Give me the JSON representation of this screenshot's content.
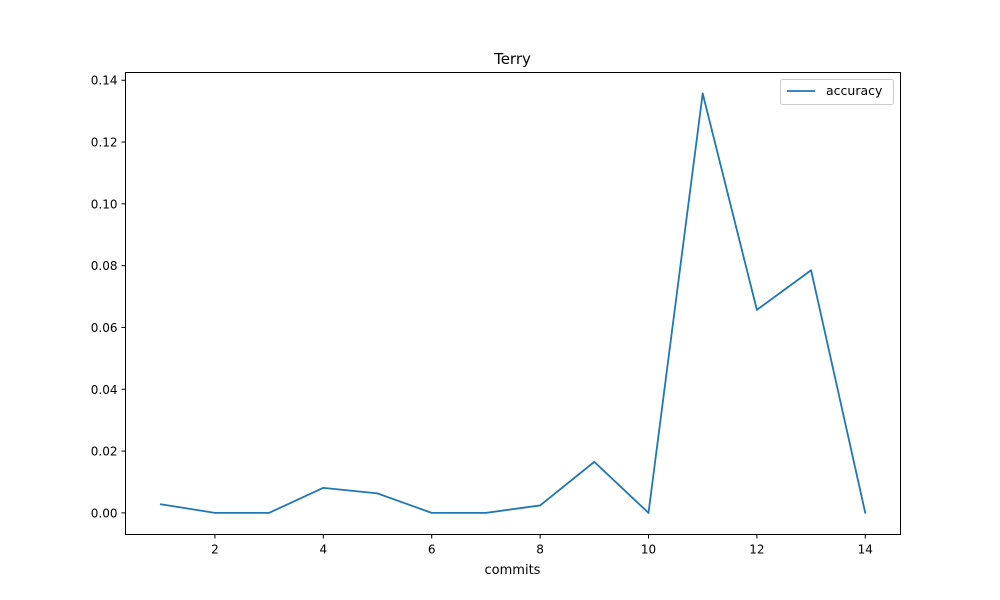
{
  "chart_data": {
    "type": "line",
    "title": "Terry",
    "xlabel": "commits",
    "ylabel": "",
    "xlim": [
      0.35,
      14.65
    ],
    "ylim": [
      -0.007,
      0.1425
    ],
    "xticks": [
      2,
      4,
      6,
      8,
      10,
      12,
      14
    ],
    "yticks": [
      0.0,
      0.02,
      0.04,
      0.06,
      0.08,
      0.1,
      0.12,
      0.14
    ],
    "ytick_labels": [
      "0.00",
      "0.02",
      "0.04",
      "0.06",
      "0.08",
      "0.10",
      "0.12",
      "0.14"
    ],
    "grid": false,
    "legend_position": "top-right",
    "x": [
      1,
      2,
      3,
      4,
      5,
      6,
      7,
      8,
      9,
      10,
      11,
      12,
      13,
      14
    ],
    "series": [
      {
        "name": "accuracy",
        "color": "#1f77b4",
        "values": [
          0.0028,
          0.0,
          0.0,
          0.0081,
          0.0063,
          0.0,
          0.0,
          0.0024,
          0.0165,
          0.0,
          0.1357,
          0.0657,
          0.0785,
          0.0
        ]
      }
    ]
  }
}
